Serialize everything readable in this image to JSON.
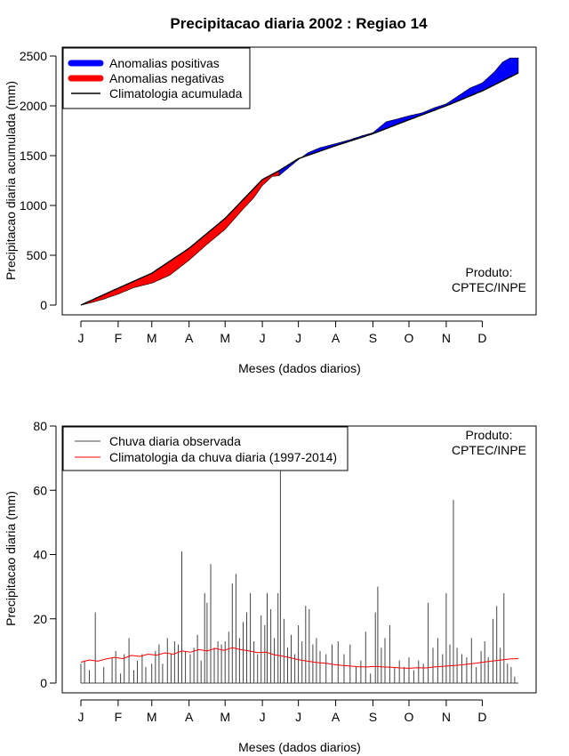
{
  "chart_data": [
    {
      "type": "area",
      "title": "Precipitacao diaria 2002 : Regiao 14",
      "xlabel": "Meses (dados diarios)",
      "ylabel": "Precipitacao diaria acumulada (mm)",
      "xlim": [
        1,
        365
      ],
      "ylim": [
        0,
        2500
      ],
      "yticks": [
        0,
        500,
        1000,
        1500,
        2000,
        2500
      ],
      "month_ticks": [
        "J",
        "F",
        "M",
        "A",
        "M",
        "J",
        "J",
        "A",
        "S",
        "O",
        "N",
        "D"
      ],
      "month_start_days": [
        1,
        32,
        60,
        91,
        121,
        152,
        182,
        213,
        244,
        274,
        305,
        335
      ],
      "legend": {
        "position": "top-left",
        "items": [
          {
            "label": "Anomalias positivas",
            "color": "#0000ff"
          },
          {
            "label": "Anomalias negativas",
            "color": "#ff0000"
          },
          {
            "label": "Climatologia acumulada",
            "color": "#000000"
          }
        ]
      },
      "annotation": [
        "Produto:",
        "CPTEC/INPE"
      ],
      "climatology_points": [
        [
          1,
          0
        ],
        [
          32,
          170
        ],
        [
          60,
          320
        ],
        [
          91,
          570
        ],
        [
          121,
          870
        ],
        [
          152,
          1260
        ],
        [
          166,
          1350
        ],
        [
          182,
          1470
        ],
        [
          213,
          1600
        ],
        [
          244,
          1720
        ],
        [
          274,
          1860
        ],
        [
          305,
          2000
        ],
        [
          335,
          2150
        ],
        [
          365,
          2330
        ]
      ],
      "observed_points": [
        [
          1,
          0
        ],
        [
          10,
          25
        ],
        [
          20,
          60
        ],
        [
          32,
          110
        ],
        [
          45,
          175
        ],
        [
          60,
          220
        ],
        [
          75,
          300
        ],
        [
          91,
          450
        ],
        [
          105,
          600
        ],
        [
          121,
          760
        ],
        [
          135,
          950
        ],
        [
          145,
          1080
        ],
        [
          152,
          1200
        ],
        [
          160,
          1290
        ],
        [
          166,
          1300
        ],
        [
          175,
          1390
        ],
        [
          182,
          1460
        ],
        [
          190,
          1530
        ],
        [
          200,
          1580
        ],
        [
          213,
          1620
        ],
        [
          225,
          1660
        ],
        [
          235,
          1700
        ],
        [
          244,
          1730
        ],
        [
          255,
          1840
        ],
        [
          265,
          1870
        ],
        [
          274,
          1900
        ],
        [
          285,
          1930
        ],
        [
          295,
          1980
        ],
        [
          305,
          2020
        ],
        [
          315,
          2100
        ],
        [
          325,
          2180
        ],
        [
          335,
          2230
        ],
        [
          345,
          2340
        ],
        [
          352,
          2440
        ],
        [
          358,
          2480
        ],
        [
          365,
          2480
        ]
      ]
    },
    {
      "type": "line",
      "xlabel": "Meses (dados diarios)",
      "ylabel": "Precipitacao diaria (mm)",
      "xlim": [
        1,
        365
      ],
      "ylim": [
        0,
        80
      ],
      "yticks": [
        0,
        20,
        40,
        60,
        80
      ],
      "month_ticks": [
        "J",
        "F",
        "M",
        "A",
        "M",
        "J",
        "J",
        "A",
        "S",
        "O",
        "N",
        "D"
      ],
      "month_start_days": [
        1,
        32,
        60,
        91,
        121,
        152,
        182,
        213,
        244,
        274,
        305,
        335
      ],
      "legend": {
        "position": "top-left",
        "items": [
          {
            "label": "Chuva diaria observada",
            "color": "#444444"
          },
          {
            "label": "Climatologia da chuva diaria (1997-2014)",
            "color": "#ff0000"
          }
        ]
      },
      "annotation": [
        "Produto:",
        "CPTEC/INPE"
      ],
      "observed_peaks": [
        [
          1,
          6
        ],
        [
          4,
          7
        ],
        [
          8,
          4
        ],
        [
          13,
          22
        ],
        [
          20,
          5
        ],
        [
          27,
          8
        ],
        [
          30,
          10
        ],
        [
          34,
          3
        ],
        [
          37,
          9
        ],
        [
          41,
          14
        ],
        [
          45,
          4
        ],
        [
          48,
          7
        ],
        [
          52,
          9
        ],
        [
          55,
          5
        ],
        [
          60,
          6
        ],
        [
          63,
          10
        ],
        [
          66,
          12
        ],
        [
          69,
          6
        ],
        [
          73,
          14
        ],
        [
          76,
          9
        ],
        [
          79,
          13
        ],
        [
          82,
          12
        ],
        [
          85,
          41
        ],
        [
          88,
          10
        ],
        [
          92,
          9
        ],
        [
          95,
          11
        ],
        [
          98,
          15
        ],
        [
          101,
          7
        ],
        [
          104,
          28
        ],
        [
          106,
          25
        ],
        [
          109,
          37
        ],
        [
          112,
          11
        ],
        [
          115,
          13
        ],
        [
          118,
          12
        ],
        [
          121,
          13
        ],
        [
          124,
          16
        ],
        [
          127,
          31
        ],
        [
          130,
          34
        ],
        [
          133,
          14
        ],
        [
          136,
          19
        ],
        [
          139,
          22
        ],
        [
          142,
          28
        ],
        [
          145,
          13
        ],
        [
          148,
          9
        ],
        [
          151,
          21
        ],
        [
          154,
          18
        ],
        [
          156,
          28
        ],
        [
          159,
          23
        ],
        [
          162,
          14
        ],
        [
          165,
          28
        ],
        [
          167,
          66
        ],
        [
          170,
          20
        ],
        [
          173,
          11
        ],
        [
          176,
          15
        ],
        [
          179,
          9
        ],
        [
          182,
          18
        ],
        [
          185,
          13
        ],
        [
          188,
          24
        ],
        [
          191,
          23
        ],
        [
          194,
          12
        ],
        [
          197,
          14
        ],
        [
          200,
          10
        ],
        [
          205,
          9
        ],
        [
          210,
          12
        ],
        [
          215,
          13
        ],
        [
          220,
          9
        ],
        [
          225,
          12
        ],
        [
          230,
          5
        ],
        [
          234,
          7
        ],
        [
          238,
          16
        ],
        [
          242,
          3
        ],
        [
          246,
          22
        ],
        [
          248,
          30
        ],
        [
          251,
          11
        ],
        [
          254,
          14
        ],
        [
          258,
          18
        ],
        [
          262,
          5
        ],
        [
          266,
          7
        ],
        [
          270,
          5
        ],
        [
          274,
          8
        ],
        [
          278,
          4
        ],
        [
          282,
          7
        ],
        [
          286,
          6
        ],
        [
          290,
          25
        ],
        [
          294,
          11
        ],
        [
          298,
          14
        ],
        [
          302,
          9
        ],
        [
          305,
          28
        ],
        [
          308,
          12
        ],
        [
          311,
          57
        ],
        [
          314,
          11
        ],
        [
          318,
          9
        ],
        [
          322,
          8
        ],
        [
          326,
          14
        ],
        [
          330,
          5
        ],
        [
          334,
          10
        ],
        [
          337,
          13
        ],
        [
          340,
          8
        ],
        [
          344,
          20
        ],
        [
          347,
          24
        ],
        [
          350,
          11
        ],
        [
          353,
          28
        ],
        [
          356,
          6
        ],
        [
          359,
          5
        ],
        [
          362,
          2
        ]
      ],
      "climatology_points": [
        [
          1,
          6.5
        ],
        [
          8,
          7.2
        ],
        [
          15,
          6.8
        ],
        [
          22,
          7.5
        ],
        [
          29,
          8.0
        ],
        [
          36,
          7.6
        ],
        [
          43,
          8.6
        ],
        [
          50,
          8.3
        ],
        [
          57,
          9.0
        ],
        [
          64,
          8.7
        ],
        [
          71,
          9.4
        ],
        [
          78,
          9.0
        ],
        [
          85,
          10.0
        ],
        [
          92,
          9.6
        ],
        [
          99,
          10.4
        ],
        [
          106,
          10.0
        ],
        [
          113,
          10.8
        ],
        [
          120,
          10.2
        ],
        [
          127,
          11.0
        ],
        [
          134,
          10.4
        ],
        [
          141,
          10.0
        ],
        [
          148,
          9.5
        ],
        [
          155,
          9.6
        ],
        [
          162,
          8.8
        ],
        [
          169,
          8.4
        ],
        [
          176,
          7.8
        ],
        [
          183,
          7.2
        ],
        [
          190,
          6.8
        ],
        [
          197,
          6.4
        ],
        [
          204,
          6.2
        ],
        [
          211,
          5.8
        ],
        [
          218,
          5.5
        ],
        [
          225,
          5.3
        ],
        [
          232,
          5.1
        ],
        [
          239,
          5.0
        ],
        [
          246,
          5.2
        ],
        [
          253,
          5.0
        ],
        [
          260,
          4.9
        ],
        [
          267,
          4.7
        ],
        [
          274,
          4.6
        ],
        [
          281,
          4.8
        ],
        [
          288,
          4.7
        ],
        [
          295,
          5.0
        ],
        [
          302,
          5.2
        ],
        [
          309,
          5.4
        ],
        [
          316,
          5.6
        ],
        [
          323,
          5.9
        ],
        [
          330,
          6.2
        ],
        [
          337,
          6.6
        ],
        [
          344,
          6.9
        ],
        [
          351,
          7.2
        ],
        [
          358,
          7.5
        ],
        [
          365,
          7.6
        ]
      ]
    }
  ]
}
